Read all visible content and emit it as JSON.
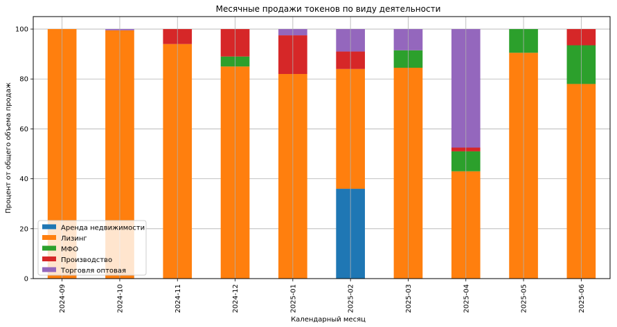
{
  "chart_data": {
    "type": "bar",
    "stacked": true,
    "title": "Месячные продажи токенов по виду деятельности",
    "xlabel": "Календарный месяц",
    "ylabel": "Процент от общего объема продаж",
    "ylim": [
      0,
      105
    ],
    "yticks": [
      0,
      20,
      40,
      60,
      80,
      100
    ],
    "grid": true,
    "legend_position": "bottom-left",
    "categories": [
      "2024-09",
      "2024-10",
      "2024-11",
      "2024-12",
      "2025-01",
      "2025-02",
      "2025-03",
      "2025-04",
      "2025-05",
      "2025-06"
    ],
    "series": [
      {
        "name": "Аренда недвижимости",
        "color": "#1f77b4",
        "values": [
          0,
          0,
          0,
          0,
          0,
          36,
          0,
          0,
          0,
          0
        ]
      },
      {
        "name": "Лизинг",
        "color": "#ff7f0e",
        "values": [
          100,
          99.5,
          94,
          85,
          82,
          48,
          84.5,
          43,
          90.5,
          78
        ]
      },
      {
        "name": "МФО",
        "color": "#2ca02c",
        "values": [
          0,
          0,
          0,
          4,
          0,
          0,
          7,
          8,
          9.5,
          15.5
        ]
      },
      {
        "name": "Производство",
        "color": "#d62728",
        "values": [
          0,
          0,
          6,
          11,
          15.5,
          7,
          0,
          1.5,
          0,
          6.5
        ]
      },
      {
        "name": "Торговля оптовая",
        "color": "#9467bd",
        "values": [
          0,
          0.5,
          0,
          0,
          2.5,
          9,
          8.5,
          47.5,
          0,
          0
        ]
      }
    ]
  }
}
